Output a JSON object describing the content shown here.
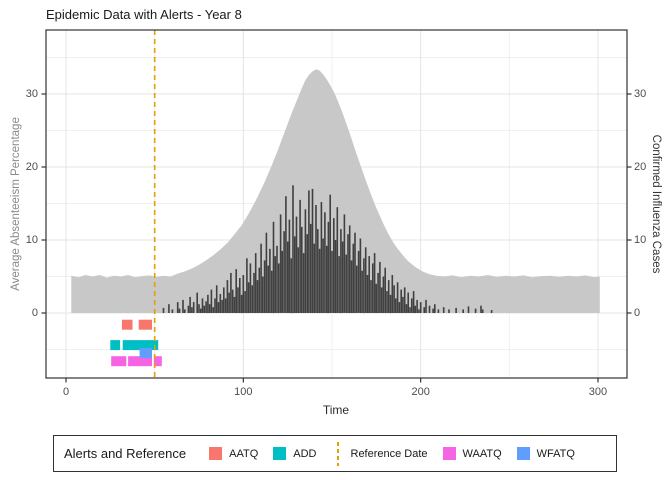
{
  "title": "Epidemic Data with Alerts - Year 8",
  "axes": {
    "x_label": "Time",
    "y_left_label": "Average Absenteeism Percentage",
    "y_right_label": "Confirmed Influenza Cases",
    "x_ticks": [
      0,
      100,
      200,
      300
    ],
    "x_minor_ticks": [
      50,
      150,
      250
    ],
    "y_ticks": [
      0,
      10,
      20,
      30
    ],
    "y_minor_ticks": [
      -5,
      5,
      15,
      25,
      35
    ]
  },
  "legend": {
    "title": "Alerts and Reference",
    "items": [
      {
        "label": "AATQ",
        "type": "square",
        "color": "#F8766D"
      },
      {
        "label": "ADD",
        "type": "square",
        "color": "#00BFC4"
      },
      {
        "label": "Reference Date",
        "type": "dashed-line",
        "color": "#E69F00"
      },
      {
        "label": "WAATQ",
        "type": "square",
        "color": "#F564E3"
      },
      {
        "label": "WFATQ",
        "type": "square",
        "color": "#619CFF"
      }
    ]
  },
  "colors": {
    "area_fill": "#C8C8C8",
    "bar_fill": "#404040",
    "reference_line": "#E69F00",
    "grid_major": "#E4E4E4",
    "grid_minor": "#F0F0F0",
    "panel_border": "#333333",
    "tick_mark": "#333333",
    "tick_text": "#4d4d4d"
  },
  "chart_data": {
    "type": "area+bar",
    "title": "Epidemic Data with Alerts - Year 8",
    "xlabel": "Time",
    "ylabel_left": "Average Absenteeism Percentage",
    "ylabel_right": "Confirmed Influenza Cases",
    "x_axis_range": [
      0,
      300
    ],
    "y_axis_range": [
      0,
      30
    ],
    "grid": true,
    "legend_position": "bottom",
    "reference_date_x": 50,
    "absenteeism_area": {
      "name": "Average Absenteeism Percentage",
      "points": [
        [
          3,
          5.1
        ],
        [
          7,
          4.9
        ],
        [
          11,
          5.2
        ],
        [
          15,
          5.0
        ],
        [
          19,
          5.2
        ],
        [
          23,
          4.85
        ],
        [
          27,
          5.1
        ],
        [
          31,
          5.0
        ],
        [
          35,
          5.2
        ],
        [
          39,
          4.9
        ],
        [
          43,
          5.05
        ],
        [
          47,
          5.15
        ],
        [
          51,
          4.95
        ],
        [
          55,
          5.1
        ],
        [
          59,
          5.0
        ],
        [
          63,
          5.4
        ],
        [
          67,
          5.7
        ],
        [
          71,
          6.1
        ],
        [
          75,
          6.6
        ],
        [
          79,
          7.2
        ],
        [
          83,
          7.9
        ],
        [
          87,
          8.7
        ],
        [
          91,
          9.6
        ],
        [
          95,
          10.8
        ],
        [
          99,
          12.0
        ],
        [
          103,
          13.6
        ],
        [
          107,
          15.4
        ],
        [
          111,
          17.4
        ],
        [
          115,
          19.6
        ],
        [
          119,
          22.0
        ],
        [
          123,
          24.6
        ],
        [
          127,
          27.2
        ],
        [
          131,
          29.6
        ],
        [
          133,
          30.8
        ],
        [
          135,
          31.9
        ],
        [
          137,
          32.6
        ],
        [
          139,
          33.1
        ],
        [
          141,
          33.4
        ],
        [
          143,
          33.2
        ],
        [
          145,
          32.7
        ],
        [
          147,
          32.0
        ],
        [
          149,
          31.2
        ],
        [
          151,
          30.3
        ],
        [
          153,
          29.2
        ],
        [
          155,
          28.0
        ],
        [
          157,
          26.7
        ],
        [
          159,
          25.3
        ],
        [
          161,
          23.9
        ],
        [
          163,
          22.4
        ],
        [
          165,
          21.0
        ],
        [
          167,
          19.6
        ],
        [
          169,
          18.2
        ],
        [
          171,
          16.9
        ],
        [
          173,
          15.6
        ],
        [
          175,
          14.4
        ],
        [
          177,
          13.3
        ],
        [
          179,
          12.2
        ],
        [
          181,
          11.2
        ],
        [
          183,
          10.3
        ],
        [
          185,
          9.5
        ],
        [
          187,
          8.8
        ],
        [
          189,
          8.2
        ],
        [
          191,
          7.6
        ],
        [
          193,
          7.1
        ],
        [
          195,
          6.7
        ],
        [
          197,
          6.3
        ],
        [
          199,
          6.0
        ],
        [
          201,
          5.7
        ],
        [
          203,
          5.5
        ],
        [
          205,
          5.3
        ],
        [
          207,
          5.2
        ],
        [
          209,
          5.1
        ],
        [
          213,
          5.0
        ],
        [
          218,
          5.15
        ],
        [
          223,
          4.9
        ],
        [
          228,
          5.1
        ],
        [
          233,
          5.0
        ],
        [
          238,
          5.2
        ],
        [
          243,
          4.95
        ],
        [
          248,
          5.1
        ],
        [
          253,
          5.0
        ],
        [
          258,
          5.15
        ],
        [
          263,
          4.9
        ],
        [
          268,
          5.05
        ],
        [
          273,
          5.1
        ],
        [
          278,
          4.95
        ],
        [
          283,
          5.1
        ],
        [
          288,
          5.0
        ],
        [
          293,
          5.15
        ],
        [
          298,
          4.9
        ],
        [
          301,
          5.0
        ]
      ]
    },
    "influenza_bars": {
      "name": "Confirmed Influenza Cases",
      "x_start": 55,
      "x_step": 1,
      "heights": [
        0.7,
        0,
        0,
        1.2,
        0,
        0.5,
        0,
        0,
        1.5,
        0.6,
        0,
        1.8,
        0.5,
        0,
        1.0,
        2.2,
        0.8,
        1.5,
        0,
        2.8,
        1.2,
        0.6,
        2.0,
        1.0,
        1.6,
        2.5,
        1.2,
        3.2,
        0.8,
        2.0,
        3.8,
        1.5,
        2.6,
        1.8,
        3.5,
        2.0,
        4.5,
        2.8,
        5.5,
        3.2,
        2.2,
        6.0,
        3.5,
        4.8,
        2.5,
        5.2,
        3.0,
        7.5,
        4.2,
        6.8,
        3.8,
        5.5,
        8.2,
        4.5,
        6.2,
        9.5,
        5.0,
        7.2,
        11.0,
        6.5,
        8.8,
        5.8,
        12.5,
        7.8,
        9.2,
        6.8,
        13.5,
        8.5,
        11.2,
        16.0,
        9.8,
        12.8,
        7.5,
        17.5,
        10.5,
        13.2,
        9.0,
        15.5,
        11.8,
        8.2,
        14.2,
        10.8,
        16.8,
        12.2,
        17.0,
        9.5,
        14.8,
        11.5,
        8.8,
        15.2,
        10.2,
        13.8,
        9.2,
        12.5,
        16.2,
        8.5,
        13.0,
        10.0,
        14.5,
        7.8,
        11.5,
        9.8,
        13.5,
        8.0,
        10.8,
        12.0,
        7.2,
        9.5,
        11.0,
        6.5,
        8.5,
        10.2,
        5.8,
        7.5,
        9.0,
        5.2,
        7.8,
        4.5,
        6.8,
        8.2,
        4.0,
        5.5,
        7.0,
        3.5,
        5.0,
        6.2,
        3.0,
        4.5,
        2.5,
        5.2,
        3.8,
        2.0,
        4.2,
        1.5,
        3.2,
        2.2,
        3.5,
        1.2,
        2.8,
        0.8,
        2.0,
        3.0,
        1.0,
        1.8,
        0.5,
        1.5,
        0,
        0.8,
        1.8,
        0,
        1.0,
        0,
        0.6,
        1.2,
        0,
        0.5,
        0,
        0,
        0.8,
        0,
        0,
        0.5,
        0,
        0,
        0,
        0.7,
        0,
        0,
        0,
        0.5,
        0,
        0,
        0.9,
        0,
        0,
        0,
        0.6,
        0,
        0,
        1.0,
        0.5,
        0,
        0,
        0,
        0,
        0.4
      ]
    },
    "alerts": [
      {
        "name": "AATQ",
        "color": "#F8766D",
        "row_y": -1.6,
        "segments": [
          [
            31.5,
            37.5
          ],
          [
            41,
            48.5
          ]
        ]
      },
      {
        "name": "ADD",
        "color": "#00BFC4",
        "row_y": -4.4,
        "segments": [
          [
            25,
            30.5
          ],
          [
            32,
            52
          ]
        ]
      },
      {
        "name": "WAATQ",
        "color": "#F564E3",
        "row_y": -6.6,
        "segments": [
          [
            25.5,
            34
          ],
          [
            35,
            48.5
          ],
          [
            49.5,
            54
          ]
        ]
      },
      {
        "name": "WFATQ",
        "color": "#619CFF",
        "row_y": -5.5,
        "segments": [
          [
            41.5,
            48.5
          ]
        ]
      }
    ]
  }
}
